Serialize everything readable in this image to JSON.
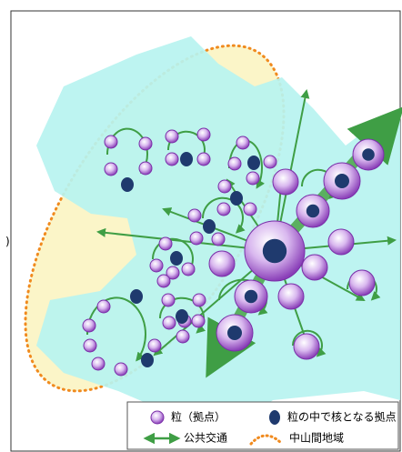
{
  "side_mark": ")",
  "legend": [
    "粒（拠点）",
    "粒の中で核となる拠点",
    "公共交通",
    "中山間地域"
  ]
}
